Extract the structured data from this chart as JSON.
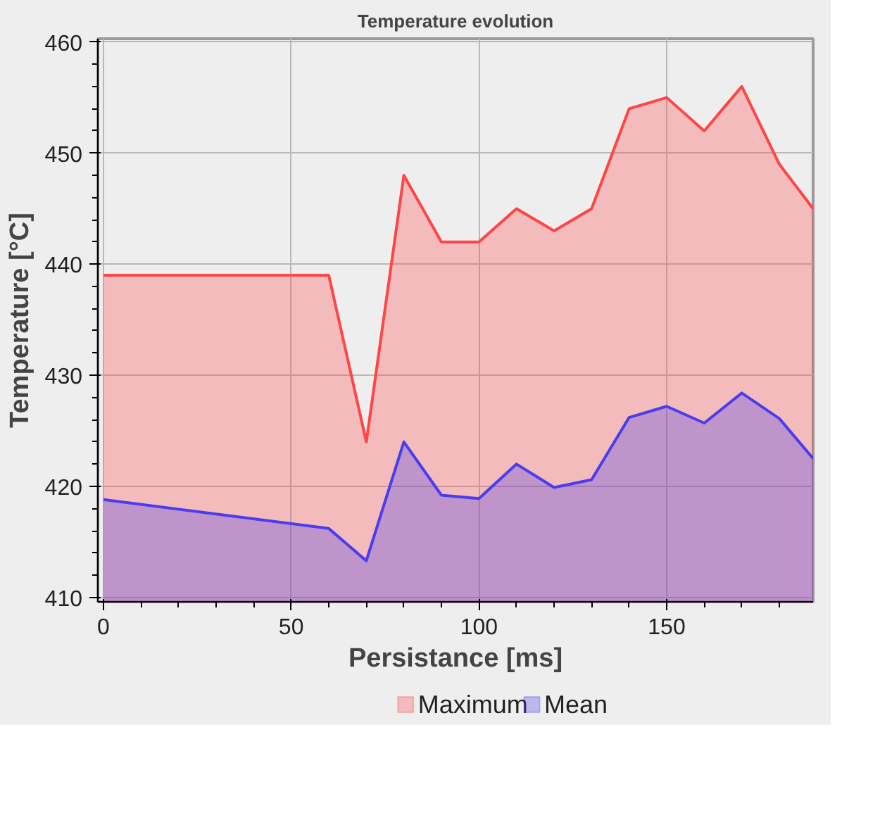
{
  "chart_data": {
    "type": "area",
    "title": "Temperature evolution",
    "xlabel": "Persistance [ms]",
    "ylabel": "Temperature [°C]",
    "x": [
      0,
      60,
      70,
      80,
      90,
      100,
      110,
      120,
      130,
      140,
      150,
      160,
      170,
      180,
      189
    ],
    "series": [
      {
        "name": "Maximum",
        "color": "#ff4545",
        "values": [
          439,
          439,
          424,
          448,
          442,
          442,
          445,
          443,
          445,
          454,
          455,
          452,
          456,
          449,
          445
        ]
      },
      {
        "name": "Mean",
        "color": "#4a3df0",
        "values": [
          418.8,
          416.2,
          413.3,
          424,
          419.2,
          418.9,
          422,
          419.9,
          420.6,
          426.2,
          427.2,
          425.7,
          428.4,
          426.1,
          422.5
        ]
      }
    ],
    "xlim": [
      -1.5,
      189
    ],
    "ylim": [
      409.6,
      460.3
    ],
    "xticks": [
      0,
      50,
      100,
      150
    ],
    "yticks": [
      410,
      420,
      430,
      440,
      450,
      460
    ],
    "grid": true,
    "legend": "bottom",
    "marker": "none",
    "line_style": "solid"
  }
}
